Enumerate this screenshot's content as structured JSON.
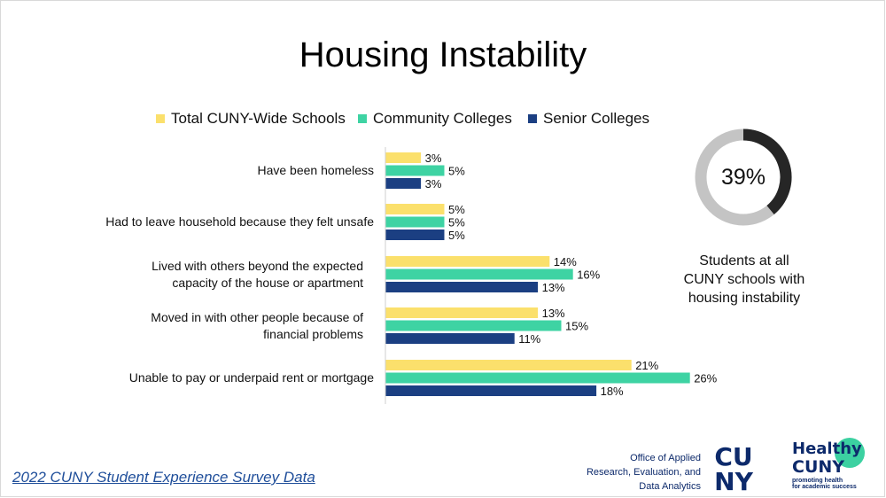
{
  "title": "Housing Instability",
  "colors": {
    "total": "#fbe06c",
    "community": "#3ed3a3",
    "senior": "#1b3f82",
    "axis": "#cfcfcf",
    "donut_fill": "#262626",
    "donut_track": "#c4c4c4",
    "brand_navy": "#0d2a6b"
  },
  "legend": [
    {
      "name": "Total CUNY-Wide Schools",
      "color": "#fbe06c"
    },
    {
      "name": "Community Colleges",
      "color": "#3ed3a3"
    },
    {
      "name": "Senior Colleges",
      "color": "#1b3f82"
    }
  ],
  "chart_data": {
    "type": "bar",
    "orientation": "horizontal",
    "title": "Housing Instability",
    "legend_position": "top",
    "grid": false,
    "xlim": [
      0,
      30
    ],
    "categories": [
      [
        "Have been homeless"
      ],
      [
        "Had to leave household because they felt unsafe"
      ],
      [
        "Lived with others beyond the expected",
        "capacity of the house or apartment"
      ],
      [
        "Moved in with other people because of",
        "financial problems"
      ],
      [
        "Unable to pay or underpaid rent or mortgage"
      ]
    ],
    "series": [
      {
        "name": "Total CUNY-Wide Schools",
        "values": [
          3,
          5,
          14,
          13,
          21
        ],
        "labels": [
          "3%",
          "5%",
          "14%",
          "13%",
          "21%"
        ]
      },
      {
        "name": "Community Colleges",
        "values": [
          5,
          5,
          16,
          15,
          26
        ],
        "labels": [
          "5%",
          "5%",
          "16%",
          "15%",
          "26%"
        ]
      },
      {
        "name": "Senior Colleges",
        "values": [
          3,
          5,
          13,
          11,
          18
        ],
        "labels": [
          "3%",
          "5%",
          "13%",
          "11%",
          "18%"
        ]
      }
    ]
  },
  "summary": {
    "value": 39,
    "value_label": "39%",
    "caption": [
      "Students at all",
      "CUNY schools with",
      "housing instability"
    ]
  },
  "footer": {
    "source": "2022 CUNY Student Experience Survey Data",
    "office": [
      "Office of Applied",
      "Research, Evaluation, and",
      "Data Analytics"
    ],
    "cuny_logo": [
      "CU",
      "NY"
    ],
    "healthy_logo": [
      "Healthy",
      "CUNY"
    ],
    "healthy_tagline": [
      "promoting health",
      "for academic success"
    ]
  }
}
